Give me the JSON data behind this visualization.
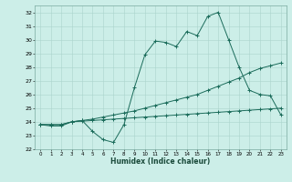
{
  "xlabel": "Humidex (Indice chaleur)",
  "background_color": "#cceee8",
  "grid_color": "#aad4cc",
  "line_color": "#1a6b5a",
  "xlim": [
    -0.5,
    23.5
  ],
  "ylim": [
    22,
    32.5
  ],
  "xticks": [
    0,
    1,
    2,
    3,
    4,
    5,
    6,
    7,
    8,
    9,
    10,
    11,
    12,
    13,
    14,
    15,
    16,
    17,
    18,
    19,
    20,
    21,
    22,
    23
  ],
  "yticks": [
    22,
    23,
    24,
    25,
    26,
    27,
    28,
    29,
    30,
    31,
    32
  ],
  "line1_x": [
    0,
    1,
    2,
    3,
    4,
    5,
    6,
    7,
    8,
    9,
    10,
    11,
    12,
    13,
    14,
    15,
    16,
    17,
    18,
    19,
    20,
    21,
    22,
    23
  ],
  "line1_y": [
    23.8,
    23.7,
    23.7,
    24.0,
    24.1,
    23.3,
    22.7,
    22.5,
    23.8,
    26.5,
    28.9,
    29.9,
    29.8,
    29.5,
    30.6,
    30.3,
    31.7,
    32.0,
    30.0,
    28.0,
    26.3,
    26.0,
    25.9,
    24.5
  ],
  "line2_x": [
    0,
    1,
    2,
    3,
    4,
    5,
    6,
    7,
    8,
    9,
    10,
    11,
    12,
    13,
    14,
    15,
    16,
    17,
    18,
    19,
    20,
    21,
    22,
    23
  ],
  "line2_y": [
    23.8,
    23.8,
    23.8,
    24.0,
    24.1,
    24.2,
    24.35,
    24.5,
    24.65,
    24.8,
    25.0,
    25.2,
    25.4,
    25.6,
    25.8,
    26.0,
    26.3,
    26.6,
    26.9,
    27.2,
    27.6,
    27.9,
    28.1,
    28.3
  ],
  "line3_x": [
    0,
    1,
    2,
    3,
    4,
    5,
    6,
    7,
    8,
    9,
    10,
    11,
    12,
    13,
    14,
    15,
    16,
    17,
    18,
    19,
    20,
    21,
    22,
    23
  ],
  "line3_y": [
    23.8,
    23.8,
    23.8,
    24.0,
    24.05,
    24.1,
    24.15,
    24.2,
    24.25,
    24.3,
    24.35,
    24.4,
    24.45,
    24.5,
    24.55,
    24.6,
    24.65,
    24.7,
    24.75,
    24.8,
    24.85,
    24.9,
    24.95,
    25.0
  ]
}
